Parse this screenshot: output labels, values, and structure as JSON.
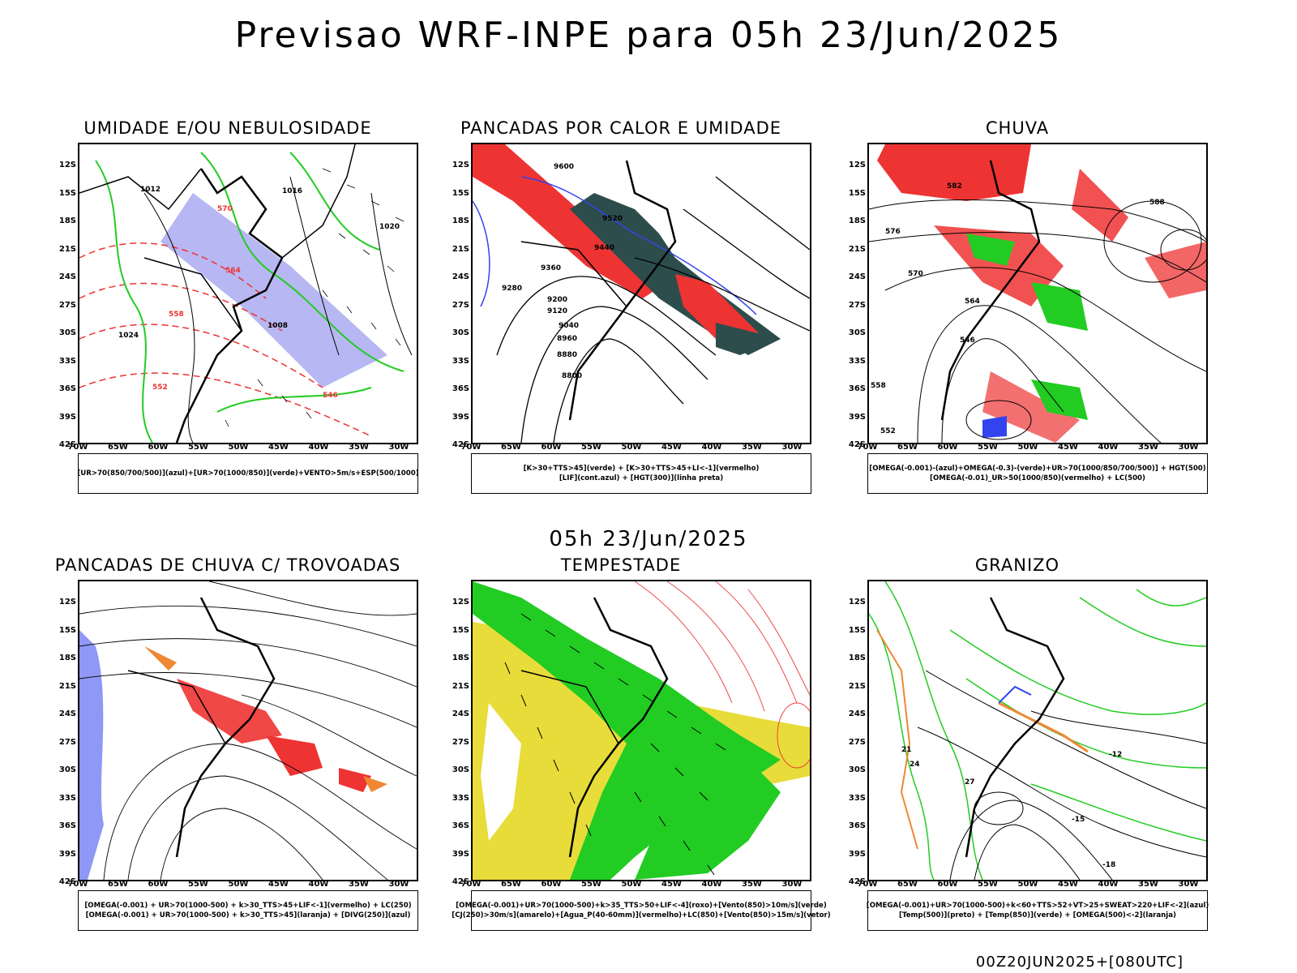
{
  "header": {
    "title": "Previsao WRF-INPE  para 05h 23/Jun/2025"
  },
  "mid_title": "05h 23/Jun/2025",
  "footer": "00Z20JUN2025+[080UTC]",
  "axes": {
    "lat_labels": [
      "12S",
      "15S",
      "18S",
      "21S",
      "24S",
      "27S",
      "30S",
      "33S",
      "36S",
      "39S",
      "42S"
    ],
    "lon_labels": [
      "70W",
      "65W",
      "60W",
      "55W",
      "50W",
      "45W",
      "40W",
      "35W",
      "30W"
    ]
  },
  "colors": {
    "blue": "#3344ee",
    "lavender": "#9999ee",
    "green": "#22cc22",
    "red": "#ee3333",
    "dark-teal": "#2d4d4d",
    "yellow": "#e8dc3a",
    "orange": "#ee8833",
    "black": "#000000"
  },
  "panels": [
    {
      "title": "UMIDADE E/OU NEBULOSIDADE",
      "legend": [
        "[UR>70(850/700/500)](azul)+[UR>70(1000/850)](verde)+VENTO>5m/s+ESP(500/1000)"
      ],
      "labels": [
        "1012",
        "1016",
        "1020",
        "1024",
        "1008",
        "570",
        "564",
        "558",
        "552",
        "546"
      ]
    },
    {
      "title": "PANCADAS POR CALOR E UMIDADE",
      "legend": [
        "[K>30+TTS>45](verde)  +  [K>30+TTS>45+LI<-1](vermelho)",
        "[LIF](cont.azul)  +  [HGT(300)](linha preta)"
      ],
      "labels": [
        "9600",
        "9520",
        "9440",
        "9360",
        "9280",
        "9200",
        "9120",
        "9040",
        "8960",
        "8880",
        "8800"
      ]
    },
    {
      "title": "CHUVA",
      "legend": [
        "[OMEGA(-0.001)-(azul)+OMEGA(-0.3)-(verde)+UR>70(1000/850/700/500)]  +  HGT(500)",
        "[OMEGA(-0.01)_UR>50(1000/850)(vermelho)  +  LC(500)"
      ],
      "labels": [
        "582",
        "576",
        "570",
        "564",
        "558",
        "552",
        "546",
        "588"
      ]
    },
    {
      "title": "PANCADAS DE CHUVA C/ TROVOADAS",
      "legend": [
        "[OMEGA(-0.001)  +  UR>70(1000-500)  +  k>30_TTS>45+LIF<-1](vermelho)  +  LC(250)",
        "[OMEGA(-0.001)  +  UR>70(1000-500)  +  k>30_TTS>45](laranja)  +  [DIVG(250)](azul)"
      ],
      "labels": []
    },
    {
      "title": "TEMPESTADE",
      "legend": [
        "[OMEGA(-0.001)+UR>70(1000-500)+k>35_TTS>50+LIF<-4](roxo)+[Vento(850)>10m/s](verde)",
        "[CJ(250)>30m/s](amarelo)+[Agua_P(40-60mm)](vermelho)+LC(850)+[Vento(850)>15m/s](vetor)"
      ],
      "labels": []
    },
    {
      "title": "GRANIZO",
      "legend": [
        "[OMEGA(-0.001)+UR>70(1000-500)+k<60+TTS>52+VT>25+SWEAT>220+LIF<-2](azul)",
        "[Temp(500)](preto)  +  [Temp(850)](verde)  +  [OMEGA(500)<-2](laranja)"
      ],
      "labels": [
        "-12",
        "-15",
        "-18",
        "21",
        "24",
        "27"
      ]
    }
  ]
}
